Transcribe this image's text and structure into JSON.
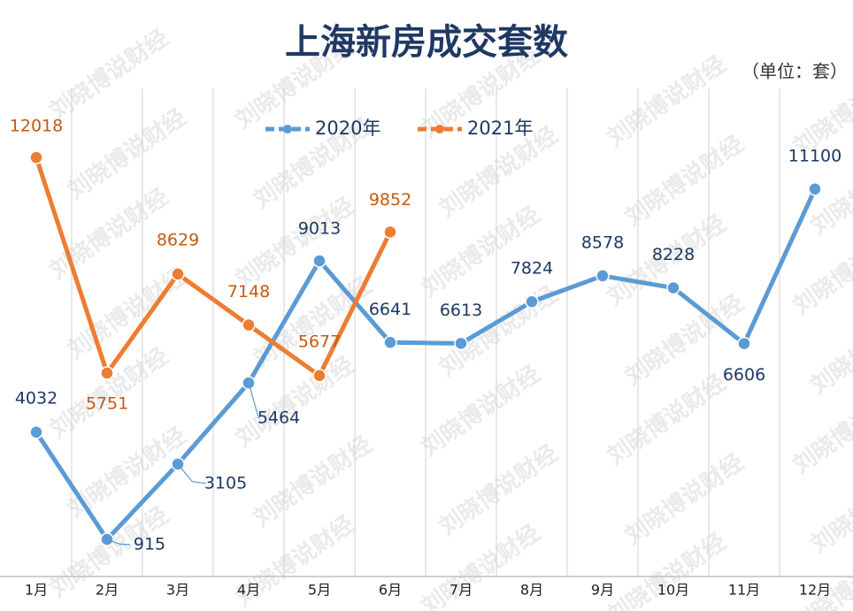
{
  "chart_data": {
    "type": "line",
    "title": "上海新房成交套数",
    "subtitle": "（单位：套）",
    "watermark": "刘晓博说财经",
    "categories": [
      "1月",
      "2月",
      "3月",
      "4月",
      "5月",
      "6月",
      "7月",
      "8月",
      "9月",
      "10月",
      "11月",
      "12月"
    ],
    "series": [
      {
        "name": "2020年",
        "color": "#5b9bd5",
        "label_color": "#1f3864",
        "values": [
          4032,
          915,
          3105,
          5464,
          9013,
          6641,
          6613,
          7824,
          8578,
          8228,
          6606,
          11100
        ]
      },
      {
        "name": "2021年",
        "color": "#ed7d31",
        "label_color": "#c55a11",
        "values": [
          12018,
          5751,
          8629,
          7148,
          5677,
          9852,
          null,
          null,
          null,
          null,
          null,
          null
        ]
      }
    ],
    "ylim": [
      0,
      14000
    ],
    "grid": true,
    "legend": "top"
  }
}
